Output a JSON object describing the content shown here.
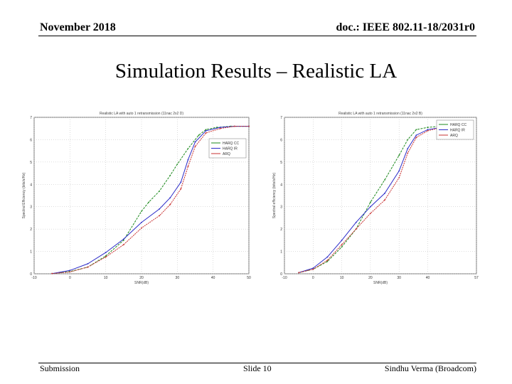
{
  "header": {
    "date": "November 2018",
    "doc": "doc.: IEEE 802.11-18/2031r0"
  },
  "slide_title": "Simulation Results – Realistic LA",
  "footer": {
    "left": "Submission",
    "center": "Slide 10",
    "right": "Sindhu Verma (Broadcom)"
  },
  "colors": {
    "harq_cc": "#1e8a1e",
    "harq_ir": "#2a2ac8",
    "arq": "#c83232"
  },
  "chart_data": [
    {
      "type": "line",
      "title": "Realistic LA with auto 1 retransmission (11nac 2x2 D)",
      "xlabel": "SNR(dB)",
      "ylabel": "Spectral Efficiency (bits/s/Hz)",
      "xlim": [
        -10,
        50
      ],
      "ylim": [
        0,
        7
      ],
      "xticks": [
        -10,
        0,
        10,
        20,
        30,
        40,
        50
      ],
      "yticks": [
        0,
        1,
        2,
        3,
        4,
        5,
        6,
        7
      ],
      "grid": true,
      "legend_position": "top-right",
      "series": [
        {
          "name": "HARQ CC",
          "color": "#1e8a1e",
          "x": [
            -5,
            0,
            5,
            10,
            15,
            20,
            22,
            25,
            28,
            30,
            33,
            36,
            38,
            41,
            45,
            50
          ],
          "y": [
            0.01,
            0.1,
            0.3,
            0.8,
            1.5,
            2.8,
            3.2,
            3.7,
            4.4,
            4.9,
            5.6,
            6.2,
            6.45,
            6.55,
            6.6,
            6.6
          ]
        },
        {
          "name": "HARQ IR",
          "color": "#2a2ac8",
          "x": [
            -5,
            0,
            5,
            10,
            15,
            20,
            25,
            28,
            31,
            33,
            35,
            38,
            42,
            46,
            50
          ],
          "y": [
            0.01,
            0.15,
            0.45,
            0.95,
            1.55,
            2.3,
            2.9,
            3.4,
            4.1,
            5.1,
            5.9,
            6.4,
            6.55,
            6.6,
            6.6
          ]
        },
        {
          "name": "ARQ",
          "color": "#c83232",
          "x": [
            -5,
            0,
            5,
            10,
            15,
            20,
            25,
            28,
            31,
            33,
            35,
            38,
            42,
            46,
            50
          ],
          "y": [
            0.01,
            0.08,
            0.3,
            0.75,
            1.3,
            2.05,
            2.6,
            3.1,
            3.8,
            4.8,
            5.7,
            6.3,
            6.5,
            6.6,
            6.6
          ]
        }
      ]
    },
    {
      "type": "line",
      "title": "Realistic LA with auto 1 retransmission (11nac 2x2 B)",
      "xlabel": "SNR(dB)",
      "ylabel": "Spectral efficiency (bits/s/Hz)",
      "xlim": [
        -10,
        57
      ],
      "ylim": [
        0,
        7
      ],
      "xticks": [
        -10,
        0,
        10,
        20,
        30,
        40,
        57
      ],
      "xtick_labels": [
        "-10",
        "0",
        "10",
        "20",
        "30",
        "40",
        "57"
      ],
      "yticks": [
        0,
        1,
        2,
        3,
        4,
        5,
        6,
        7
      ],
      "grid": true,
      "legend_position": "top-right",
      "series": [
        {
          "name": "HARQ CC",
          "color": "#1e8a1e",
          "x": [
            -5,
            0,
            5,
            10,
            15,
            20,
            25,
            30,
            33,
            36,
            40,
            45,
            50,
            55
          ],
          "y": [
            0.05,
            0.2,
            0.55,
            1.2,
            2.0,
            3.2,
            4.2,
            5.3,
            6.0,
            6.45,
            6.55,
            6.6,
            6.6,
            6.6
          ]
        },
        {
          "name": "HARQ IR",
          "color": "#2a2ac8",
          "x": [
            -5,
            0,
            5,
            10,
            15,
            20,
            25,
            30,
            33,
            36,
            40,
            45,
            50,
            55
          ],
          "y": [
            0.05,
            0.25,
            0.75,
            1.5,
            2.3,
            3.0,
            3.6,
            4.6,
            5.6,
            6.2,
            6.45,
            6.55,
            6.6,
            6.6
          ]
        },
        {
          "name": "ARQ",
          "color": "#c83232",
          "x": [
            -5,
            0,
            5,
            10,
            15,
            20,
            25,
            30,
            33,
            36,
            40,
            45,
            50,
            55
          ],
          "y": [
            0.05,
            0.2,
            0.6,
            1.3,
            2.0,
            2.7,
            3.3,
            4.3,
            5.4,
            6.1,
            6.4,
            6.55,
            6.6,
            6.6
          ]
        }
      ]
    }
  ]
}
